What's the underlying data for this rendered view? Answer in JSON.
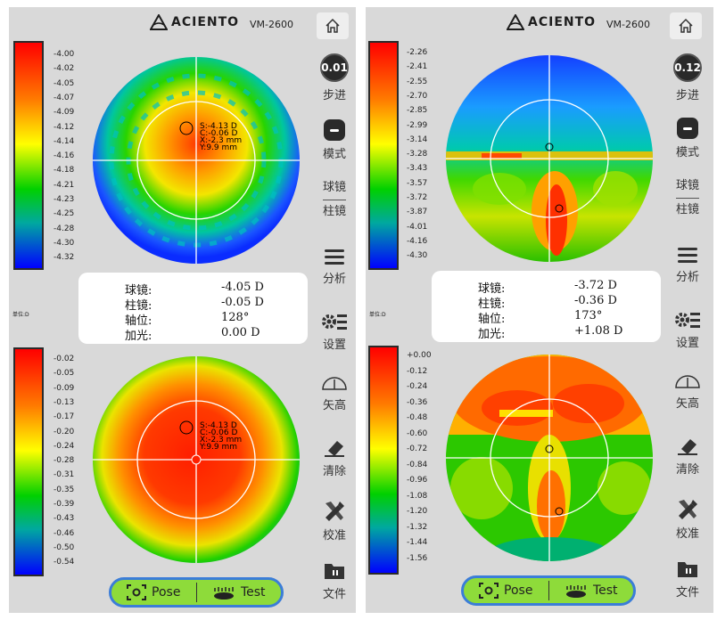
{
  "header": {
    "logo_text": "ACIENTO",
    "model": "VM-2600"
  },
  "sidebar": {
    "home_icon": "home-icon",
    "step_label": "步进",
    "mode_label": "模式",
    "sphere_label": "球镜",
    "cylinder_label": "柱镜",
    "analyze_label": "分析",
    "settings_label": "设置",
    "sag_label": "矢高",
    "clear_label": "清除",
    "calibrate_label": "校准",
    "file_label": "文件"
  },
  "unit_label": "单位:D",
  "bottom": {
    "pose_label": "Pose",
    "test_label": "Test"
  },
  "info_keys": {
    "sphere": "球镜:",
    "cylinder": "柱镜:",
    "axis": "轴位:",
    "add": "加光:"
  },
  "panels": [
    {
      "step_value": "0.01",
      "top_scale": [
        "-4.00",
        "-4.02",
        "-4.05",
        "-4.07",
        "-4.09",
        "-4.12",
        "-4.14",
        "-4.16",
        "-4.18",
        "-4.21",
        "-4.23",
        "-4.25",
        "-4.28",
        "-4.30",
        "-4.32"
      ],
      "bottom_scale": [
        "-0.02",
        "-0.05",
        "-0.09",
        "-0.13",
        "-0.17",
        "-0.20",
        "-0.24",
        "-0.28",
        "-0.31",
        "-0.35",
        "-0.39",
        "-0.43",
        "-0.46",
        "-0.50",
        "-0.54"
      ],
      "info": {
        "sphere": "-4.05 D",
        "cylinder": "-0.05 D",
        "axis": "128°",
        "add": "0.00 D"
      },
      "annotation": [
        "S:-4.13 D",
        "C:-0.06 D",
        "X:-2.3 mm",
        "Y:9.9 mm"
      ]
    },
    {
      "step_value": "0.12",
      "top_scale": [
        "-2.26",
        "-2.41",
        "-2.55",
        "-2.70",
        "-2.85",
        "-2.99",
        "-3.14",
        "-3.28",
        "-3.43",
        "-3.57",
        "-3.72",
        "-3.87",
        "-4.01",
        "-4.16",
        "-4.30"
      ],
      "bottom_scale": [
        "+0.00",
        "-0.12",
        "-0.24",
        "-0.36",
        "-0.48",
        "-0.60",
        "-0.72",
        "-0.84",
        "-0.96",
        "-1.08",
        "-1.20",
        "-1.32",
        "-1.44",
        "-1.56"
      ],
      "info": {
        "sphere": "-3.72 D",
        "cylinder": "-0.36 D",
        "axis": "173°",
        "add": "+1.08 D"
      }
    }
  ]
}
